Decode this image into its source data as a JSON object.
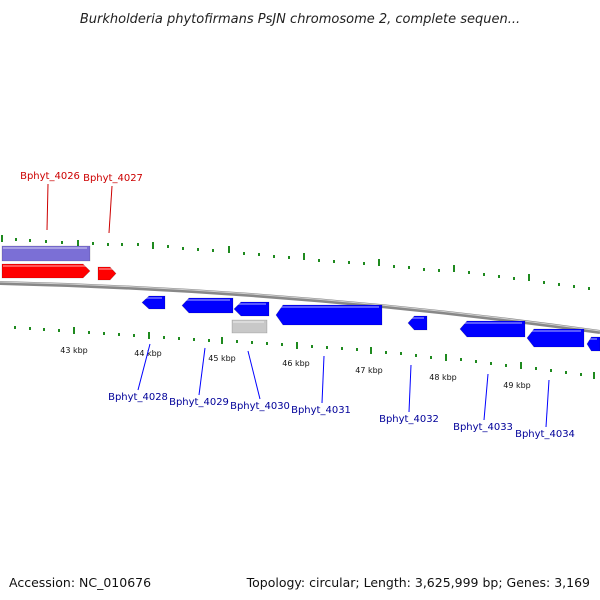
{
  "title": "Burkholderia phytofirmans PsJN chromosome 2, complete sequen...",
  "footer": {
    "accession": "Accession: NC_010676",
    "summary": "Topology: circular; Length: 3,625,999 bp; Genes: 3,169"
  },
  "colors": {
    "backbone": "#888888",
    "tick": "#1f8a1f",
    "forward_gene": "#ff0000",
    "reverse_gene": "#0000ff",
    "selected_region": "#7b6fd6",
    "pseudo_gene": "#c8c8c8",
    "forward_label": "#cc0000",
    "reverse_label": "#000099"
  },
  "scale_labels": [
    "43 kbp",
    "44 kbp",
    "45 kbp",
    "46 kbp",
    "47 kbp",
    "48 kbp",
    "49 kbp"
  ],
  "forward_labels": [
    "Bphyt_4026",
    "Bphyt_4027"
  ],
  "reverse_labels": [
    "Bphyt_4028",
    "Bphyt_4029",
    "Bphyt_4030",
    "Bphyt_4031",
    "Bphyt_4032",
    "Bphyt_4033",
    "Bphyt_4034"
  ]
}
